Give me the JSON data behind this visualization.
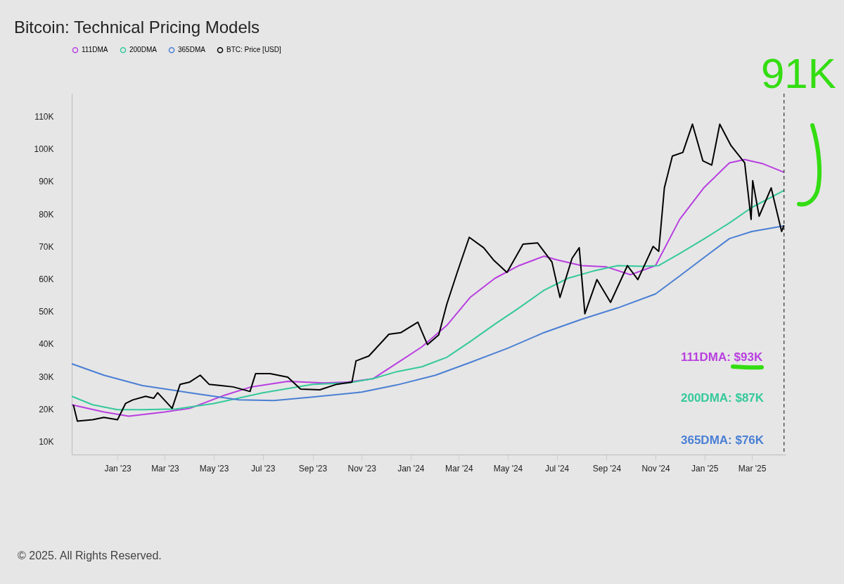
{
  "chart_data": {
    "type": "line",
    "title": "Bitcoin: Technical Pricing Models",
    "xlim": [
      "2022-11-05",
      "2025-04-12"
    ],
    "xticks": [
      {
        "value": "2023-01-01",
        "label": "Jan '23"
      },
      {
        "value": "2023-03-01",
        "label": "Mar '23"
      },
      {
        "value": "2023-05-01",
        "label": "May '23"
      },
      {
        "value": "2023-07-01",
        "label": "Jul '23"
      },
      {
        "value": "2023-09-01",
        "label": "Sep '23"
      },
      {
        "value": "2023-11-01",
        "label": "Nov '23"
      },
      {
        "value": "2024-01-01",
        "label": "Jan '24"
      },
      {
        "value": "2024-03-01",
        "label": "Mar '24"
      },
      {
        "value": "2024-05-01",
        "label": "May '24"
      },
      {
        "value": "2024-07-01",
        "label": "Jul '24"
      },
      {
        "value": "2024-09-01",
        "label": "Sep '24"
      },
      {
        "value": "2024-11-01",
        "label": "Nov '24"
      },
      {
        "value": "2025-01-01",
        "label": "Jan '25"
      },
      {
        "value": "2025-03-01",
        "label": "Mar '25"
      }
    ],
    "ylim": [
      6000,
      117000
    ],
    "yticks": [
      {
        "value": 10000,
        "label": "10K"
      },
      {
        "value": 20000,
        "label": "20K"
      },
      {
        "value": 30000,
        "label": "30K"
      },
      {
        "value": 40000,
        "label": "40K"
      },
      {
        "value": 50000,
        "label": "50K"
      },
      {
        "value": 60000,
        "label": "60K"
      },
      {
        "value": 70000,
        "label": "70K"
      },
      {
        "value": 80000,
        "label": "80K"
      },
      {
        "value": 90000,
        "label": "90K"
      },
      {
        "value": 100000,
        "label": "100K"
      },
      {
        "value": 110000,
        "label": "110K"
      }
    ],
    "grid": false,
    "legend": "top left",
    "line_style": "solid",
    "series": [
      {
        "name": "111DMA",
        "color": "#b83fe0",
        "x": [
          "2022-11-05",
          "2022-12-15",
          "2023-01-15",
          "2023-03-01",
          "2023-04-01",
          "2023-05-15",
          "2023-06-15",
          "2023-08-01",
          "2023-09-15",
          "2023-10-15",
          "2023-11-15",
          "2023-12-15",
          "2024-01-15",
          "2024-02-15",
          "2024-03-15",
          "2024-04-15",
          "2024-05-15",
          "2024-06-15",
          "2024-07-01",
          "2024-08-01",
          "2024-09-01",
          "2024-10-01",
          "2024-11-01",
          "2024-12-01",
          "2024-12-31",
          "2025-02-01",
          "2025-02-20",
          "2025-03-15",
          "2025-04-10"
        ],
        "values": [
          21300,
          19100,
          17800,
          19100,
          20200,
          24300,
          26700,
          28500,
          28000,
          28300,
          29300,
          34100,
          39100,
          45700,
          54300,
          60200,
          64100,
          67000,
          65900,
          64100,
          63700,
          61300,
          64100,
          78300,
          88000,
          95700,
          96700,
          95400,
          92800
        ]
      },
      {
        "name": "200DMA",
        "color": "#35c99b",
        "x": [
          "2022-11-05",
          "2022-12-01",
          "2023-01-01",
          "2023-02-01",
          "2023-03-15",
          "2023-05-01",
          "2023-07-01",
          "2023-09-01",
          "2023-10-15",
          "2023-11-15",
          "2023-12-15",
          "2024-01-15",
          "2024-02-15",
          "2024-03-15",
          "2024-04-15",
          "2024-05-15",
          "2024-06-15",
          "2024-07-15",
          "2024-08-15",
          "2024-09-15",
          "2024-10-15",
          "2024-11-05",
          "2024-12-01",
          "2025-01-01",
          "2025-02-01",
          "2025-03-01",
          "2025-04-10"
        ],
        "values": [
          23900,
          21300,
          19800,
          19800,
          20000,
          21700,
          25000,
          27600,
          28000,
          29300,
          31500,
          33000,
          35900,
          40700,
          46100,
          51100,
          56500,
          60200,
          62400,
          64100,
          63900,
          64100,
          67800,
          72400,
          77200,
          82000,
          87200
        ]
      },
      {
        "name": "365DMA",
        "color": "#4a7fd4",
        "x": [
          "2022-11-05",
          "2022-12-15",
          "2023-02-01",
          "2023-04-01",
          "2023-06-01",
          "2023-07-15",
          "2023-09-01",
          "2023-11-01",
          "2023-12-15",
          "2024-02-01",
          "2024-03-15",
          "2024-05-01",
          "2024-06-15",
          "2024-08-01",
          "2024-09-15",
          "2024-11-01",
          "2024-12-01",
          "2025-01-01",
          "2025-02-01",
          "2025-03-01",
          "2025-04-10"
        ],
        "values": [
          33900,
          30400,
          27200,
          25000,
          22800,
          22600,
          23700,
          25200,
          27400,
          30400,
          34300,
          38700,
          43500,
          47600,
          51100,
          55400,
          60900,
          66700,
          72400,
          74600,
          76300
        ]
      },
      {
        "name": "BTC: Price [USD]",
        "color": "#000000",
        "x": [
          "2022-11-07",
          "2022-11-12",
          "2022-12-01",
          "2022-12-15",
          "2023-01-01",
          "2023-01-11",
          "2023-01-20",
          "2023-02-05",
          "2023-02-15",
          "2023-02-20",
          "2023-03-10",
          "2023-03-20",
          "2023-04-01",
          "2023-04-14",
          "2023-04-25",
          "2023-05-10",
          "2023-05-25",
          "2023-06-15",
          "2023-06-22",
          "2023-07-10",
          "2023-08-01",
          "2023-08-17",
          "2023-09-10",
          "2023-10-01",
          "2023-10-20",
          "2023-10-25",
          "2023-11-10",
          "2023-12-05",
          "2023-12-20",
          "2024-01-10",
          "2024-01-22",
          "2024-02-05",
          "2024-02-15",
          "2024-02-28",
          "2024-03-14",
          "2024-04-01",
          "2024-04-13",
          "2024-04-30",
          "2024-05-20",
          "2024-06-07",
          "2024-06-25",
          "2024-07-05",
          "2024-07-20",
          "2024-07-29",
          "2024-08-05",
          "2024-08-20",
          "2024-09-06",
          "2024-09-27",
          "2024-10-10",
          "2024-10-29",
          "2024-11-05",
          "2024-11-12",
          "2024-11-22",
          "2024-12-05",
          "2024-12-17",
          "2024-12-30",
          "2025-01-10",
          "2025-01-20",
          "2025-02-03",
          "2025-02-20",
          "2025-02-28",
          "2025-03-02",
          "2025-03-10",
          "2025-03-25",
          "2025-04-07",
          "2025-04-10"
        ],
        "values": [
          21300,
          16300,
          16700,
          17400,
          16700,
          21700,
          22800,
          23900,
          23300,
          25000,
          20200,
          27600,
          28300,
          30400,
          27600,
          27200,
          26800,
          25400,
          30900,
          30900,
          29800,
          26100,
          25900,
          27600,
          28300,
          34800,
          36300,
          43000,
          43500,
          46700,
          39800,
          42800,
          52200,
          62000,
          72800,
          69600,
          65900,
          62000,
          70700,
          71100,
          65200,
          54300,
          66300,
          69600,
          49300,
          59800,
          52800,
          64100,
          59800,
          70000,
          68500,
          88000,
          97800,
          98900,
          107600,
          96300,
          95000,
          107600,
          101000,
          95700,
          78300,
          90200,
          79300,
          88000,
          74600,
          76500
        ]
      }
    ],
    "ref_lines": [
      {
        "axis": "x",
        "value": "2025-04-10",
        "color": "#333333",
        "line_style": "dashed"
      }
    ],
    "annotations": [
      "111DMA: $93K",
      "200DMA: $87K",
      "365DMA: $76K",
      "91K",
      "© 2025. All Rights Reserved."
    ]
  }
}
